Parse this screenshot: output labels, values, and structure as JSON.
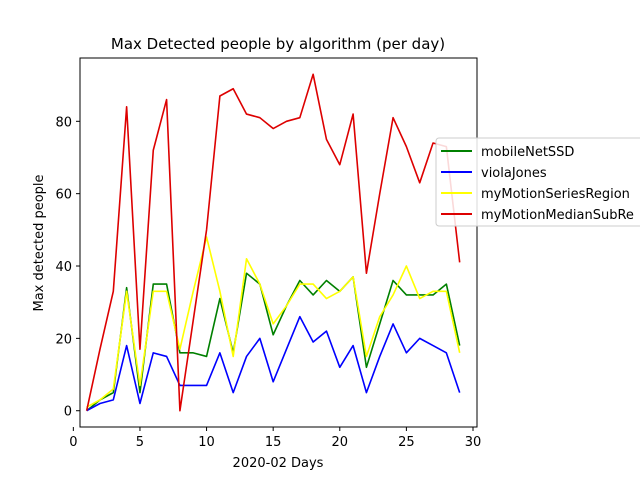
{
  "chart_data": {
    "type": "line",
    "title": "Max Detected people by algorithm (per day)",
    "xlabel": "2020-02 Days",
    "ylabel": "Max detected people",
    "xlim": [
      0.5,
      30.3
    ],
    "ylim": [
      -4.5,
      97.5
    ],
    "xticks": [
      0,
      5,
      10,
      15,
      20,
      25,
      30
    ],
    "yticks": [
      0,
      20,
      40,
      60,
      80
    ],
    "grid": false,
    "legend_position": "right (overflowing axes)",
    "x": [
      1,
      2,
      3,
      4,
      5,
      6,
      7,
      8,
      9,
      10,
      11,
      12,
      13,
      14,
      15,
      16,
      17,
      18,
      19,
      20,
      21,
      22,
      23,
      24,
      25,
      26,
      27,
      28,
      29
    ],
    "series": [
      {
        "name": "mobileNetSSD",
        "color": "#008000",
        "values": [
          0,
          3,
          5,
          34,
          5,
          35,
          35,
          16,
          16,
          15,
          31,
          16,
          38,
          35,
          21,
          29,
          36,
          32,
          36,
          33,
          37,
          12,
          24,
          36,
          32,
          32,
          32,
          35,
          18
        ]
      },
      {
        "name": "violaJones",
        "color": "#0000ff",
        "values": [
          0,
          2,
          3,
          18,
          2,
          16,
          15,
          7,
          7,
          7,
          16,
          5,
          15,
          20,
          8,
          17,
          26,
          19,
          22,
          12,
          18,
          5,
          15,
          24,
          16,
          20,
          18,
          16,
          5
        ]
      },
      {
        "name": "myMotionSeriesRegion",
        "color": "#ffff00",
        "values": [
          1,
          3,
          6,
          33,
          7,
          33,
          33,
          17,
          33,
          48,
          33,
          15,
          42,
          35,
          24,
          29,
          35,
          35,
          31,
          33,
          37,
          15,
          26,
          32,
          40,
          31,
          33,
          33,
          16
        ]
      },
      {
        "name": "myMotionMedianSubRe",
        "color": "#dd0000",
        "values": [
          0,
          17,
          33,
          84,
          17,
          72,
          86,
          0,
          25,
          50,
          87,
          89,
          82,
          81,
          78,
          80,
          81,
          93,
          75,
          68,
          82,
          38,
          60,
          81,
          73,
          63,
          74,
          73,
          41
        ]
      }
    ]
  }
}
